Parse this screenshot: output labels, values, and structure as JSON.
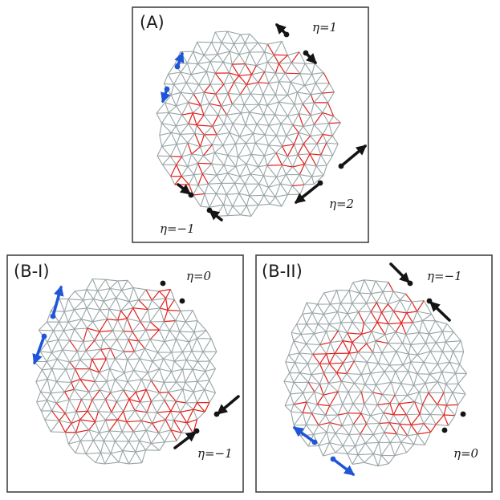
{
  "panels": [
    {
      "id": "A",
      "label": "(A)",
      "eta_labels": [
        {
          "text": "η=1"
        },
        {
          "text": "η=2"
        },
        {
          "text": "η=−1"
        }
      ],
      "arrow_colors": [
        "black",
        "blue"
      ]
    },
    {
      "id": "B-I",
      "label": "(B-I)",
      "eta_labels": [
        {
          "text": "η=0"
        },
        {
          "text": "η=−1"
        }
      ]
    },
    {
      "id": "B-II",
      "label": "(B-II)",
      "eta_labels": [
        {
          "text": "η=−1"
        },
        {
          "text": "η=0"
        }
      ]
    }
  ],
  "colors": {
    "mesh": "#98a4a6",
    "highlight": "#e0201c",
    "force_black": "#141414",
    "force_blue": "#1f55d8",
    "frame": "#444444"
  }
}
